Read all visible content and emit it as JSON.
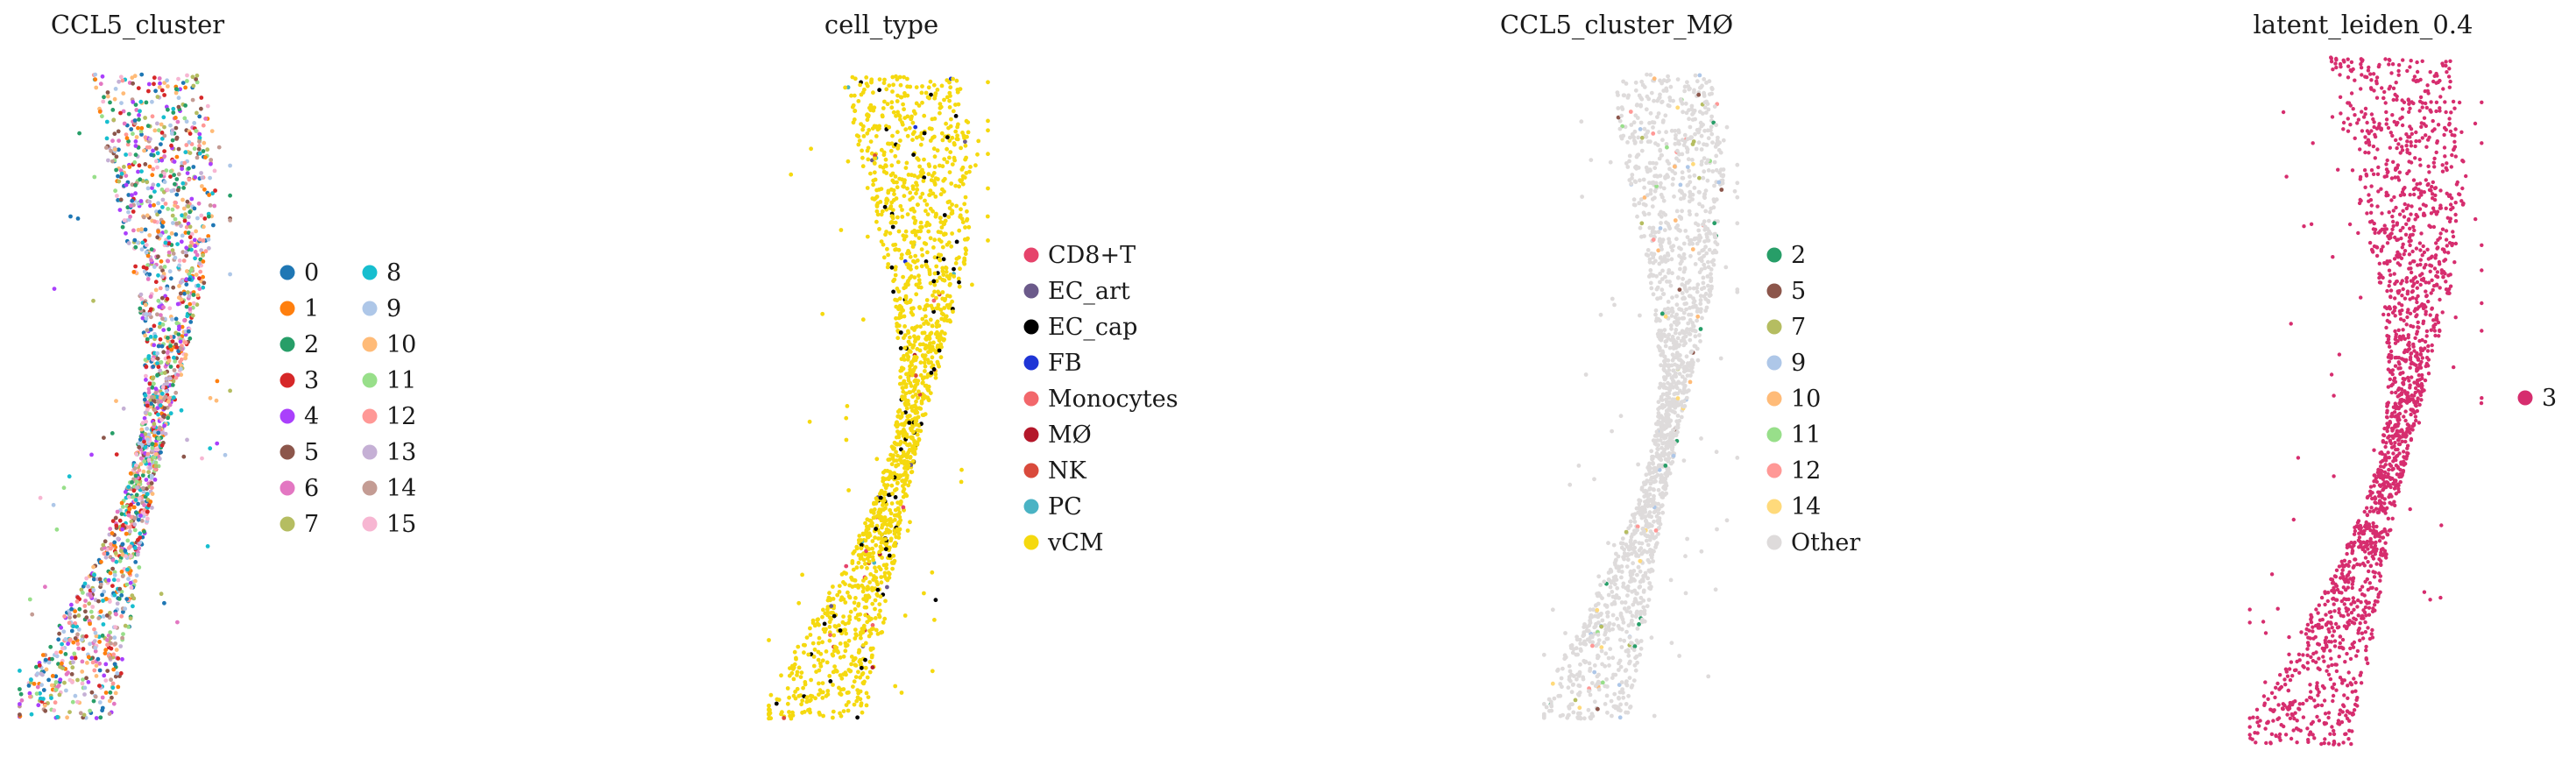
{
  "chart_data": [
    {
      "type": "scatter",
      "title": "CCL5_cluster",
      "legend_placement": "right, two columns",
      "categories": [
        "0",
        "1",
        "2",
        "3",
        "4",
        "5",
        "6",
        "7",
        "8",
        "9",
        "10",
        "11",
        "12",
        "13",
        "14",
        "15"
      ],
      "colors": [
        "#1f77b4",
        "#ff7f0e",
        "#279e68",
        "#d62728",
        "#aa40fc",
        "#8c564b",
        "#e377c2",
        "#b5bd61",
        "#17becf",
        "#aec7e8",
        "#ffbb78",
        "#98df8a",
        "#ff9896",
        "#c5b0d5",
        "#c49c94",
        "#f7b6d2"
      ]
    },
    {
      "type": "scatter",
      "title": "cell_type",
      "legend_placement": "right",
      "categories": [
        "CD8+T",
        "EC_art",
        "EC_cap",
        "FB",
        "Monocytes",
        "MØ",
        "NK",
        "PC",
        "vCM"
      ],
      "colors": [
        "#e6436b",
        "#6b5a8a",
        "#000000",
        "#1f35d6",
        "#f2676b",
        "#b4172a",
        "#d94a3c",
        "#4ab3c4",
        "#f5d90f"
      ],
      "dominant_category": "vCM"
    },
    {
      "type": "scatter",
      "title": "CCL5_cluster_MØ",
      "legend_placement": "right",
      "categories": [
        "2",
        "5",
        "7",
        "9",
        "10",
        "11",
        "12",
        "14",
        "Other"
      ],
      "colors": [
        "#279e68",
        "#8c564b",
        "#b5bd61",
        "#aec7e8",
        "#ffbb78",
        "#98df8a",
        "#ff9896",
        "#ffda7b",
        "#dedbdb"
      ],
      "dominant_category": "Other"
    },
    {
      "type": "scatter",
      "title": "latent_leiden_0.4",
      "legend_placement": "right",
      "categories": [
        "3"
      ],
      "colors": [
        "#d62d6e"
      ],
      "dominant_category": "3"
    }
  ]
}
